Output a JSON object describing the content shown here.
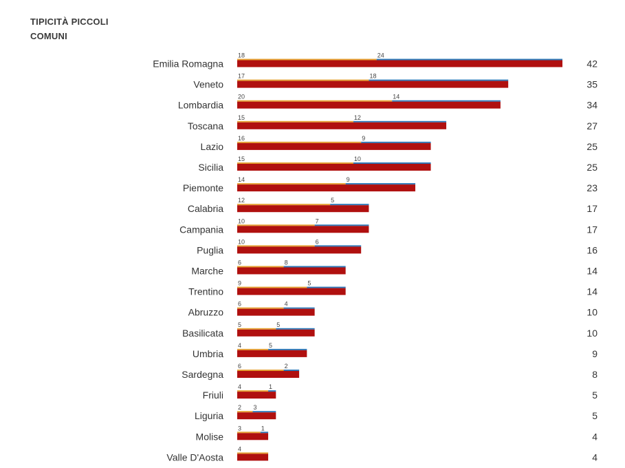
{
  "chart_data": {
    "type": "bar",
    "title": "TIPICITÀ PICCOLI COMUNI",
    "xlabel": "",
    "ylabel": "",
    "legend": "none",
    "grid": false,
    "colors": {
      "series_a": "#e5a033",
      "series_b": "#2e78b7",
      "total": "#b0100f"
    },
    "categories": [
      "Emilia Romagna",
      "Veneto",
      "Lombardia",
      "Toscana",
      "Lazio",
      "Sicilia",
      "Piemonte",
      "Calabria",
      "Campania",
      "Puglia",
      "Marche",
      "Trentino",
      "Abruzzo",
      "Basilicata",
      "Umbria",
      "Sardegna",
      "Friuli",
      "Liguria",
      "Molise",
      "Valle D'Aosta"
    ],
    "series": [
      {
        "values": [
          18,
          17,
          20,
          15,
          16,
          15,
          14,
          12,
          10,
          10,
          6,
          9,
          6,
          5,
          4,
          6,
          4,
          2,
          3,
          4
        ]
      },
      {
        "values": [
          24,
          18,
          14,
          12,
          9,
          10,
          9,
          5,
          7,
          6,
          8,
          5,
          4,
          5,
          5,
          2,
          1,
          3,
          1,
          0
        ]
      },
      {
        "values": [
          42,
          35,
          34,
          27,
          25,
          25,
          23,
          17,
          17,
          16,
          14,
          14,
          10,
          10,
          9,
          8,
          5,
          5,
          4,
          4
        ]
      }
    ],
    "xlim": [
      0,
      42
    ]
  }
}
